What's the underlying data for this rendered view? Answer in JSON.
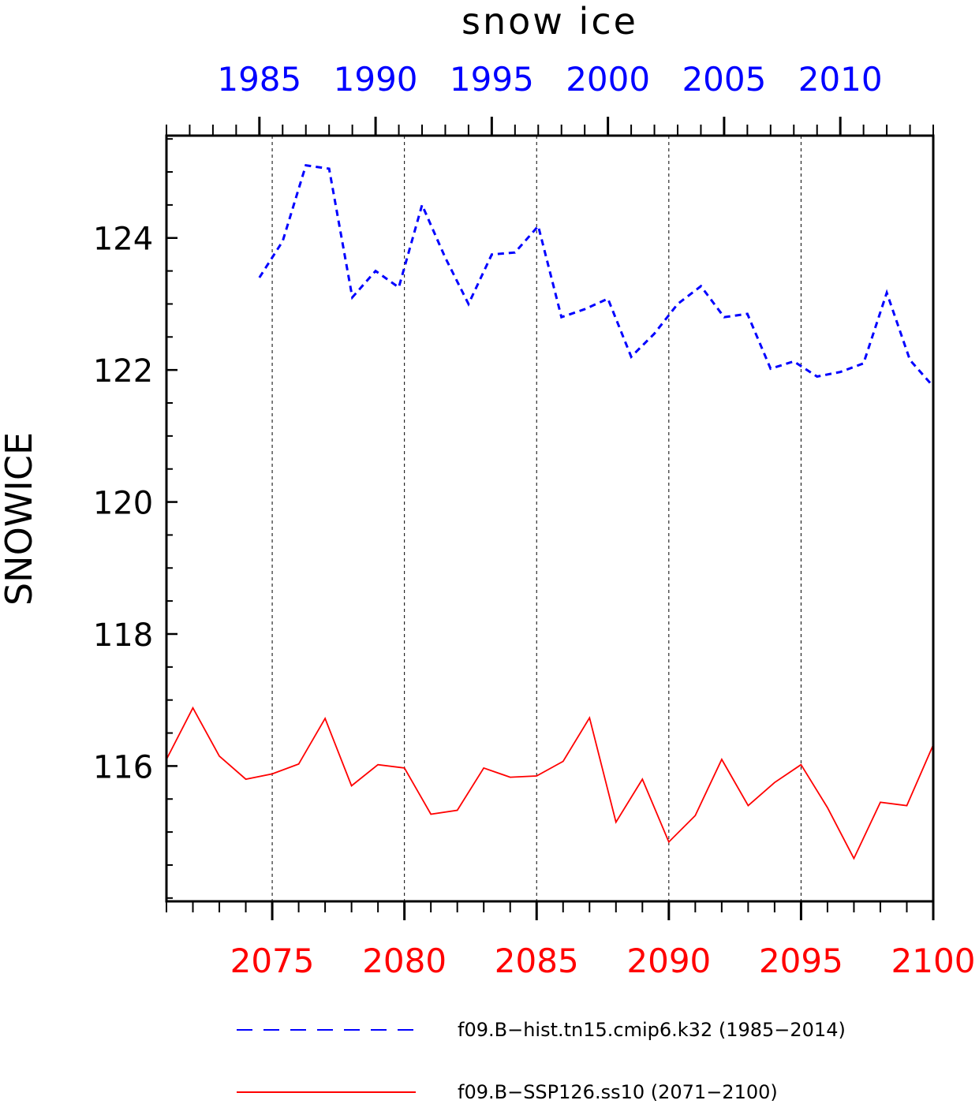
{
  "chart_data": {
    "type": "line",
    "title": "snow ice",
    "ylabel": "SNOWICE",
    "ylim": [
      113.95,
      125.55
    ],
    "y_ticks": [
      116,
      118,
      120,
      122,
      124
    ],
    "y_minor_step": 0.5,
    "grid_x": "dashed-vertical",
    "legend_placement": "bottom",
    "top_axis": {
      "range": [
        1981,
        2014
      ],
      "tick_values": [
        1985,
        1990,
        1995,
        2000,
        2005,
        2010
      ],
      "tick_labels": [
        "1985",
        "1990",
        "1995",
        "2000",
        "2005",
        "2010"
      ],
      "color": "#0000ff"
    },
    "bottom_axis": {
      "range": [
        2071,
        2100
      ],
      "tick_values": [
        2075,
        2080,
        2085,
        2090,
        2095,
        2100
      ],
      "tick_labels": [
        "2075",
        "2080",
        "2085",
        "2090",
        "2095",
        "2100"
      ],
      "color": "#ff0000"
    },
    "series": [
      {
        "name": "f09.B−hist.tn15.cmip6.k32 (1985−2014)",
        "axis": "top",
        "color": "#0000ff",
        "style": "dashed",
        "x": [
          1985,
          1986,
          1987,
          1988,
          1989,
          1990,
          1991,
          1992,
          1993,
          1994,
          1995,
          1996,
          1997,
          1998,
          1999,
          2000,
          2001,
          2002,
          2003,
          2004,
          2005,
          2006,
          2007,
          2008,
          2009,
          2010,
          2011,
          2012,
          2013,
          2014
        ],
        "values": [
          123.4,
          123.95,
          125.1,
          125.05,
          123.1,
          123.5,
          123.25,
          124.5,
          123.7,
          123.0,
          123.75,
          123.78,
          124.18,
          122.8,
          122.92,
          123.08,
          122.2,
          122.55,
          123.0,
          123.27,
          122.8,
          122.85,
          122.02,
          122.13,
          121.9,
          121.97,
          122.1,
          123.17,
          122.15,
          121.75
        ]
      },
      {
        "name": "f09.B−SSP126.ss10 (2071−2100)",
        "axis": "bottom",
        "color": "#ff0000",
        "style": "solid",
        "x": [
          2071,
          2072,
          2073,
          2074,
          2075,
          2076,
          2077,
          2078,
          2079,
          2080,
          2081,
          2082,
          2083,
          2084,
          2085,
          2086,
          2087,
          2088,
          2089,
          2090,
          2091,
          2092,
          2093,
          2094,
          2095,
          2096,
          2097,
          2098,
          2099,
          2100
        ],
        "values": [
          116.1,
          116.88,
          116.15,
          115.8,
          115.88,
          116.03,
          116.72,
          115.7,
          116.02,
          115.97,
          115.27,
          115.33,
          115.97,
          115.83,
          115.85,
          116.07,
          116.73,
          115.15,
          115.8,
          114.85,
          115.25,
          116.1,
          115.4,
          115.75,
          116.02,
          115.37,
          114.6,
          115.45,
          115.4,
          116.32
        ]
      }
    ]
  }
}
